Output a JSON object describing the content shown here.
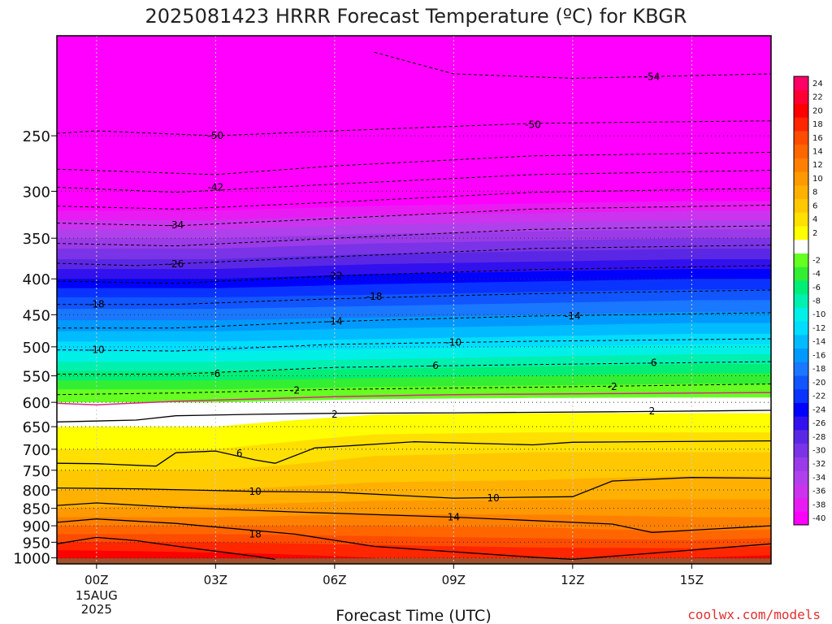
{
  "chart_data": {
    "type": "heatmap",
    "title": "2025081423 HRRR Forecast Temperature (ºC) for KBGR",
    "xlabel": "Forecast Time (UTC)",
    "ylabel": "",
    "credit": "coolwx.com/models",
    "x_ticks": [
      {
        "hour": 1,
        "label": "00Z",
        "sub": [
          "15AUG",
          "2025"
        ]
      },
      {
        "hour": 4,
        "label": "03Z"
      },
      {
        "hour": 7,
        "label": "06Z"
      },
      {
        "hour": 10,
        "label": "09Z"
      },
      {
        "hour": 13,
        "label": "12Z"
      },
      {
        "hour": 16,
        "label": "15Z"
      }
    ],
    "x_range_hours": [
      0,
      18
    ],
    "y_scale": "log",
    "y_range_hpa": [
      1020,
      180
    ],
    "y_ticks": [
      250,
      300,
      350,
      400,
      450,
      500,
      550,
      600,
      650,
      700,
      750,
      800,
      850,
      900,
      950,
      1000
    ],
    "ground_color": "#a0522d",
    "ground_top_hpa": 1002,
    "colorbar": [
      {
        "min": -40,
        "max": -38,
        "label": "-40",
        "color": "#ff00ff"
      },
      {
        "min": -38,
        "max": -36,
        "label": "-38",
        "color": "#e81cf2"
      },
      {
        "min": -36,
        "max": -34,
        "label": "-36",
        "color": "#cc33ee"
      },
      {
        "min": -34,
        "max": -32,
        "label": "-34",
        "color": "#b040ec"
      },
      {
        "min": -32,
        "max": -30,
        "label": "-32",
        "color": "#9a3ae8"
      },
      {
        "min": -30,
        "max": -28,
        "label": "-30",
        "color": "#7a33e6"
      },
      {
        "min": -28,
        "max": -26,
        "label": "-28",
        "color": "#5a28e4"
      },
      {
        "min": -26,
        "max": -24,
        "label": "-26",
        "color": "#3311ee"
      },
      {
        "min": -24,
        "max": -22,
        "label": "-24",
        "color": "#0000ff"
      },
      {
        "min": -22,
        "max": -20,
        "label": "-22",
        "color": "#0a33ff"
      },
      {
        "min": -20,
        "max": -18,
        "label": "-20",
        "color": "#1155ff"
      },
      {
        "min": -18,
        "max": -16,
        "label": "-18",
        "color": "#1a77ff"
      },
      {
        "min": -16,
        "max": -14,
        "label": "-16",
        "color": "#0099ff"
      },
      {
        "min": -14,
        "max": -12,
        "label": "-14",
        "color": "#00bbff"
      },
      {
        "min": -12,
        "max": -10,
        "label": "-12",
        "color": "#00ddff"
      },
      {
        "min": -10,
        "max": -8,
        "label": "-10",
        "color": "#00f0e8"
      },
      {
        "min": -8,
        "max": -6,
        "label": "-8",
        "color": "#00f0b0"
      },
      {
        "min": -6,
        "max": -4,
        "label": "-6",
        "color": "#00ee77"
      },
      {
        "min": -4,
        "max": -2,
        "label": "-4",
        "color": "#33ee33"
      },
      {
        "min": -2,
        "max": 0,
        "label": "-2",
        "color": "#66ff22"
      },
      {
        "min": 0,
        "max": 2,
        "label": "",
        "color": "#ffffff"
      },
      {
        "min": 2,
        "max": 4,
        "label": "2",
        "color": "#ffff00"
      },
      {
        "min": 4,
        "max": 6,
        "label": "4",
        "color": "#ffe000"
      },
      {
        "min": 6,
        "max": 8,
        "label": "6",
        "color": "#ffc800"
      },
      {
        "min": 8,
        "max": 10,
        "label": "8",
        "color": "#ffb000"
      },
      {
        "min": 10,
        "max": 12,
        "label": "10",
        "color": "#ff9900"
      },
      {
        "min": 12,
        "max": 14,
        "label": "12",
        "color": "#ff8000"
      },
      {
        "min": 14,
        "max": 16,
        "label": "14",
        "color": "#ff6600"
      },
      {
        "min": 16,
        "max": 18,
        "label": "16",
        "color": "#ff4c00"
      },
      {
        "min": 18,
        "max": 20,
        "label": "18",
        "color": "#ff2600"
      },
      {
        "min": 20,
        "max": 22,
        "label": "20",
        "color": "#ff0000"
      },
      {
        "min": 22,
        "max": 24,
        "label": "22",
        "color": "#ff0033"
      },
      {
        "min": 24,
        "max": 26,
        "label": "24",
        "color": "#ff0066"
      }
    ],
    "temperature_profile": {
      "pressure_hpa": [
        1000,
        975,
        950,
        925,
        900,
        875,
        850,
        825,
        800,
        775,
        750,
        725,
        700,
        675,
        650,
        625,
        600,
        575,
        550,
        525,
        500,
        475,
        450,
        425,
        400,
        375,
        350,
        325,
        300,
        275,
        250,
        225,
        200,
        180
      ],
      "times": [
        {
          "hour": 0,
          "temps": [
            22,
            20,
            18,
            16,
            14,
            12,
            10,
            9,
            8,
            7,
            6,
            5,
            4,
            3,
            2,
            1,
            0,
            -2,
            -5,
            -8,
            -11,
            -14,
            -17,
            -20,
            -24,
            -28,
            -32,
            -37,
            -42,
            -47,
            -51,
            -54,
            -56,
            -58
          ]
        },
        {
          "hour": 4,
          "temps": [
            21,
            19.5,
            18,
            16,
            14,
            12,
            10.5,
            9.2,
            8,
            7,
            6,
            5,
            4,
            3,
            2,
            1,
            0,
            -2,
            -5,
            -8,
            -11,
            -14,
            -17,
            -20,
            -24,
            -28,
            -32,
            -37,
            -42,
            -47,
            -51,
            -54,
            -56,
            -58
          ]
        },
        {
          "hour": 8,
          "temps": [
            20,
            19,
            17.5,
            15.5,
            14,
            12.5,
            11,
            9.8,
            8.7,
            7.8,
            7,
            6.3,
            5.5,
            4.4,
            3.2,
            2,
            0.5,
            -1.5,
            -4.5,
            -7.5,
            -10.5,
            -13.5,
            -16.5,
            -19.5,
            -23,
            -27,
            -31,
            -36,
            -41,
            -46,
            -50.5,
            -53.5,
            -56,
            -58
          ]
        },
        {
          "hour": 12,
          "temps": [
            19.5,
            18.5,
            17,
            15,
            13.8,
            12.4,
            11,
            9.9,
            8.9,
            8,
            7.2,
            6.5,
            5.8,
            4.6,
            3.4,
            2.2,
            0.6,
            -1.2,
            -4,
            -7,
            -10,
            -13,
            -16,
            -19,
            -22.5,
            -26.5,
            -30.5,
            -35.5,
            -40.5,
            -45.5,
            -50,
            -53.5,
            -56,
            -58
          ]
        },
        {
          "hour": 16,
          "temps": [
            20,
            18.5,
            16.5,
            14.5,
            13,
            12,
            11,
            10,
            9.5,
            8.5,
            7.3,
            6.5,
            5.8,
            4.6,
            3.4,
            2.2,
            0.6,
            -1,
            -3.5,
            -6.5,
            -9.5,
            -12.5,
            -15.5,
            -18.5,
            -22,
            -26,
            -30,
            -35,
            -40,
            -45,
            -50,
            -53.5,
            -56,
            -58
          ]
        },
        {
          "hour": 18,
          "temps": [
            20.5,
            19,
            17,
            15,
            13.2,
            12,
            11,
            10,
            9.5,
            8.5,
            7.3,
            6.5,
            5.8,
            4.6,
            3.4,
            2.2,
            0.6,
            -1,
            -3.5,
            -6.5,
            -9.5,
            -12.5,
            -15.5,
            -18.5,
            -22,
            -26,
            -30,
            -35,
            -40,
            -45,
            -50,
            -53.5,
            -56,
            -58
          ]
        }
      ]
    },
    "contours_solid": [
      {
        "label": "2",
        "points": [
          [
            0,
            640
          ],
          [
            2,
            636
          ],
          [
            3,
            627
          ],
          [
            5,
            624
          ],
          [
            7,
            622
          ],
          [
            10,
            621
          ],
          [
            14,
            619
          ],
          [
            18,
            616
          ]
        ]
      },
      {
        "label": "6",
        "points": [
          [
            0,
            733
          ],
          [
            1,
            734
          ],
          [
            2.5,
            740
          ],
          [
            3,
            708
          ],
          [
            4,
            704
          ],
          [
            5,
            725
          ],
          [
            5.5,
            733
          ],
          [
            6.5,
            697
          ],
          [
            9,
            683
          ],
          [
            12,
            690
          ],
          [
            13,
            684
          ],
          [
            18,
            681
          ]
        ]
      },
      {
        "label": "10",
        "points": [
          [
            0,
            795
          ],
          [
            2,
            797
          ],
          [
            5,
            804
          ],
          [
            7,
            806
          ],
          [
            10,
            822
          ],
          [
            13,
            818
          ],
          [
            14,
            777
          ],
          [
            16,
            768
          ],
          [
            18,
            770
          ]
        ]
      },
      {
        "label": "14",
        "points": [
          [
            0,
            842
          ],
          [
            1,
            835
          ],
          [
            3,
            847
          ],
          [
            6,
            860
          ],
          [
            10,
            875
          ],
          [
            14,
            895
          ],
          [
            15,
            920
          ],
          [
            18,
            900
          ]
        ]
      },
      {
        "label": "18",
        "points": [
          [
            0,
            890
          ],
          [
            1,
            880
          ],
          [
            3,
            893
          ],
          [
            6,
            925
          ],
          [
            8,
            963
          ],
          [
            12,
            998
          ],
          [
            13,
            1005
          ]
        ]
      },
      {
        "label": "",
        "points": [
          [
            0,
            955
          ],
          [
            1,
            935
          ],
          [
            2,
            945
          ],
          [
            3,
            962
          ],
          [
            5,
            995
          ],
          [
            5.5,
            1005
          ]
        ]
      },
      {
        "label": "",
        "points": [
          [
            13,
            1005
          ],
          [
            15,
            985
          ],
          [
            18,
            955
          ]
        ]
      }
    ],
    "contour_zero": {
      "label": "",
      "color": "#dd2288",
      "points": [
        [
          0,
          602
        ],
        [
          1,
          605
        ],
        [
          3,
          598
        ],
        [
          7,
          589
        ],
        [
          10,
          585
        ],
        [
          14,
          583
        ],
        [
          18,
          581
        ]
      ]
    },
    "contours_dashed": [
      {
        "label": "-2",
        "points": [
          [
            0,
            585
          ],
          [
            3,
            582
          ],
          [
            7,
            575
          ],
          [
            12,
            571
          ],
          [
            18,
            565
          ]
        ]
      },
      {
        "label": "-6",
        "points": [
          [
            0,
            547
          ],
          [
            3,
            547
          ],
          [
            7,
            535
          ],
          [
            12,
            530
          ],
          [
            18,
            525
          ]
        ]
      },
      {
        "label": "-10",
        "points": [
          [
            0,
            505
          ],
          [
            3,
            507
          ],
          [
            7,
            496
          ],
          [
            12,
            491
          ],
          [
            18,
            487
          ]
        ]
      },
      {
        "label": "-14",
        "points": [
          [
            0,
            470
          ],
          [
            3,
            470
          ],
          [
            7,
            460
          ],
          [
            12,
            452
          ],
          [
            18,
            447
          ]
        ]
      },
      {
        "label": "-18",
        "points": [
          [
            0,
            435
          ],
          [
            3,
            435
          ],
          [
            7,
            427
          ],
          [
            12,
            420
          ],
          [
            18,
            415
          ]
        ]
      },
      {
        "label": "-22",
        "points": [
          [
            0,
            403
          ],
          [
            3,
            406
          ],
          [
            7,
            396
          ],
          [
            12,
            388
          ],
          [
            18,
            383
          ]
        ]
      },
      {
        "label": "-26",
        "points": [
          [
            0,
            380
          ],
          [
            2,
            383
          ],
          [
            7,
            372
          ],
          [
            12,
            362
          ],
          [
            18,
            358
          ]
        ]
      },
      {
        "label": "-30",
        "points": [
          [
            0,
            356
          ],
          [
            3,
            359
          ],
          [
            7,
            350
          ],
          [
            12,
            340
          ],
          [
            18,
            336
          ]
        ]
      },
      {
        "label": "-34",
        "points": [
          [
            0,
            333
          ],
          [
            3,
            336
          ],
          [
            7,
            328
          ],
          [
            12,
            318
          ],
          [
            18,
            314
          ]
        ]
      },
      {
        "label": "-38",
        "points": [
          [
            0,
            315
          ],
          [
            3,
            318
          ],
          [
            7,
            311
          ],
          [
            12,
            301
          ],
          [
            18,
            297
          ]
        ]
      },
      {
        "label": "-42",
        "points": [
          [
            0,
            296
          ],
          [
            3,
            301
          ],
          [
            7,
            293
          ],
          [
            12,
            284
          ],
          [
            18,
            280
          ]
        ]
      },
      {
        "label": "-46",
        "points": [
          [
            0,
            279
          ],
          [
            4,
            284
          ],
          [
            7,
            276
          ],
          [
            12,
            267
          ],
          [
            18,
            264
          ]
        ]
      },
      {
        "label": "-50",
        "points": [
          [
            0,
            248
          ],
          [
            1,
            246
          ],
          [
            4,
            250
          ],
          [
            7,
            246
          ],
          [
            12,
            240
          ],
          [
            18,
            238
          ]
        ]
      },
      {
        "label": "-54",
        "points": [
          [
            8,
            190
          ],
          [
            10,
            204
          ],
          [
            13,
            207
          ],
          [
            18,
            204
          ]
        ]
      }
    ],
    "contour_labels": [
      {
        "text": "2",
        "hour": 7,
        "hpa": 624
      },
      {
        "text": "2",
        "hour": 15,
        "hpa": 618
      },
      {
        "text": "6",
        "hour": 4.6,
        "hpa": 710
      },
      {
        "text": "10",
        "hour": 5,
        "hpa": 804
      },
      {
        "text": "10",
        "hour": 11,
        "hpa": 822
      },
      {
        "text": "14",
        "hour": 10,
        "hpa": 875
      },
      {
        "text": "18",
        "hour": 5,
        "hpa": 925
      },
      {
        "text": "-2",
        "hour": 6,
        "hpa": 577
      },
      {
        "text": "-2",
        "hour": 14,
        "hpa": 570
      },
      {
        "text": "-6",
        "hour": 4,
        "hpa": 546
      },
      {
        "text": "-6",
        "hour": 9.5,
        "hpa": 532
      },
      {
        "text": "-6",
        "hour": 15,
        "hpa": 527
      },
      {
        "text": "-10",
        "hour": 1,
        "hpa": 505
      },
      {
        "text": "-10",
        "hour": 10,
        "hpa": 493
      },
      {
        "text": "-14",
        "hour": 7,
        "hpa": 460
      },
      {
        "text": "-14",
        "hour": 13,
        "hpa": 452
      },
      {
        "text": "-18",
        "hour": 1,
        "hpa": 435
      },
      {
        "text": "-18",
        "hour": 8,
        "hpa": 424
      },
      {
        "text": "-22",
        "hour": 7,
        "hpa": 396
      },
      {
        "text": "-26",
        "hour": 3,
        "hpa": 381
      },
      {
        "text": "-34",
        "hour": 3,
        "hpa": 335
      },
      {
        "text": "-42",
        "hour": 4,
        "hpa": 296
      },
      {
        "text": "-50",
        "hour": 4,
        "hpa": 250
      },
      {
        "text": "-50",
        "hour": 12,
        "hpa": 241
      },
      {
        "text": "-54",
        "hour": 15,
        "hpa": 206
      }
    ]
  }
}
